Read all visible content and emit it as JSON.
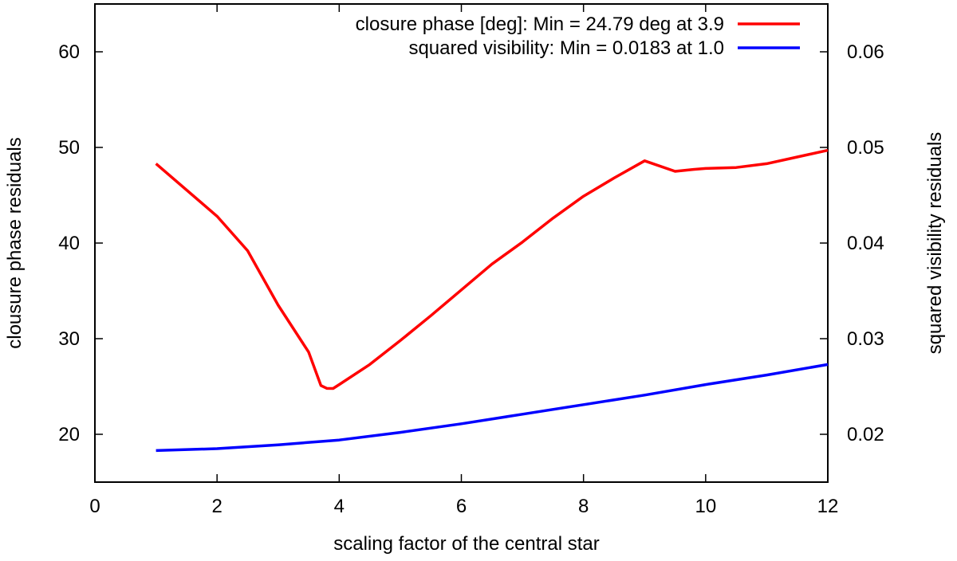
{
  "chart_data": {
    "type": "line",
    "title": "",
    "xlabel": "scaling factor of the central star",
    "ylabel": "clousure phase residuals",
    "y2label": "squared visibility residuals",
    "xlim": [
      0,
      12
    ],
    "ylim": [
      15,
      65
    ],
    "y2lim": [
      0.015,
      0.065
    ],
    "xticks": [
      "0",
      "2",
      "4",
      "6",
      "8",
      "10",
      "12"
    ],
    "yticks": [
      "20",
      "30",
      "40",
      "50",
      "60"
    ],
    "y2ticks": [
      "0.02",
      "0.03",
      "0.04",
      "0.05",
      "0.06"
    ],
    "legend_position": "top-right",
    "series": [
      {
        "name": "closure phase [deg]: Min = 24.79 deg at 3.9",
        "axis": "left",
        "color": "#ff0000",
        "x": [
          1.0,
          2.0,
          2.5,
          3.0,
          3.5,
          3.7,
          3.8,
          3.9,
          4.0,
          4.5,
          5.0,
          5.5,
          6.0,
          6.5,
          7.0,
          7.5,
          8.0,
          8.5,
          9.0,
          9.5,
          9.8,
          10.0,
          10.5,
          11.0,
          11.5,
          12.0
        ],
        "y": [
          48.3,
          42.8,
          39.2,
          33.5,
          28.6,
          25.1,
          24.8,
          24.79,
          25.2,
          27.3,
          29.8,
          32.4,
          35.1,
          37.8,
          40.1,
          42.6,
          44.9,
          46.8,
          48.6,
          47.5,
          47.7,
          47.8,
          47.9,
          48.3,
          49.0,
          49.7
        ]
      },
      {
        "name": "squared visibility: Min = 0.0183 at 1.0",
        "axis": "right",
        "color": "#0000ff",
        "x": [
          1.0,
          2.0,
          2.5,
          3.0,
          4.0,
          5.0,
          6.0,
          7.0,
          8.0,
          9.0,
          10.0,
          11.0,
          12.0
        ],
        "y": [
          0.0183,
          0.0185,
          0.0187,
          0.0189,
          0.0194,
          0.0202,
          0.0211,
          0.0221,
          0.0231,
          0.0241,
          0.0252,
          0.0262,
          0.0273
        ]
      }
    ]
  }
}
